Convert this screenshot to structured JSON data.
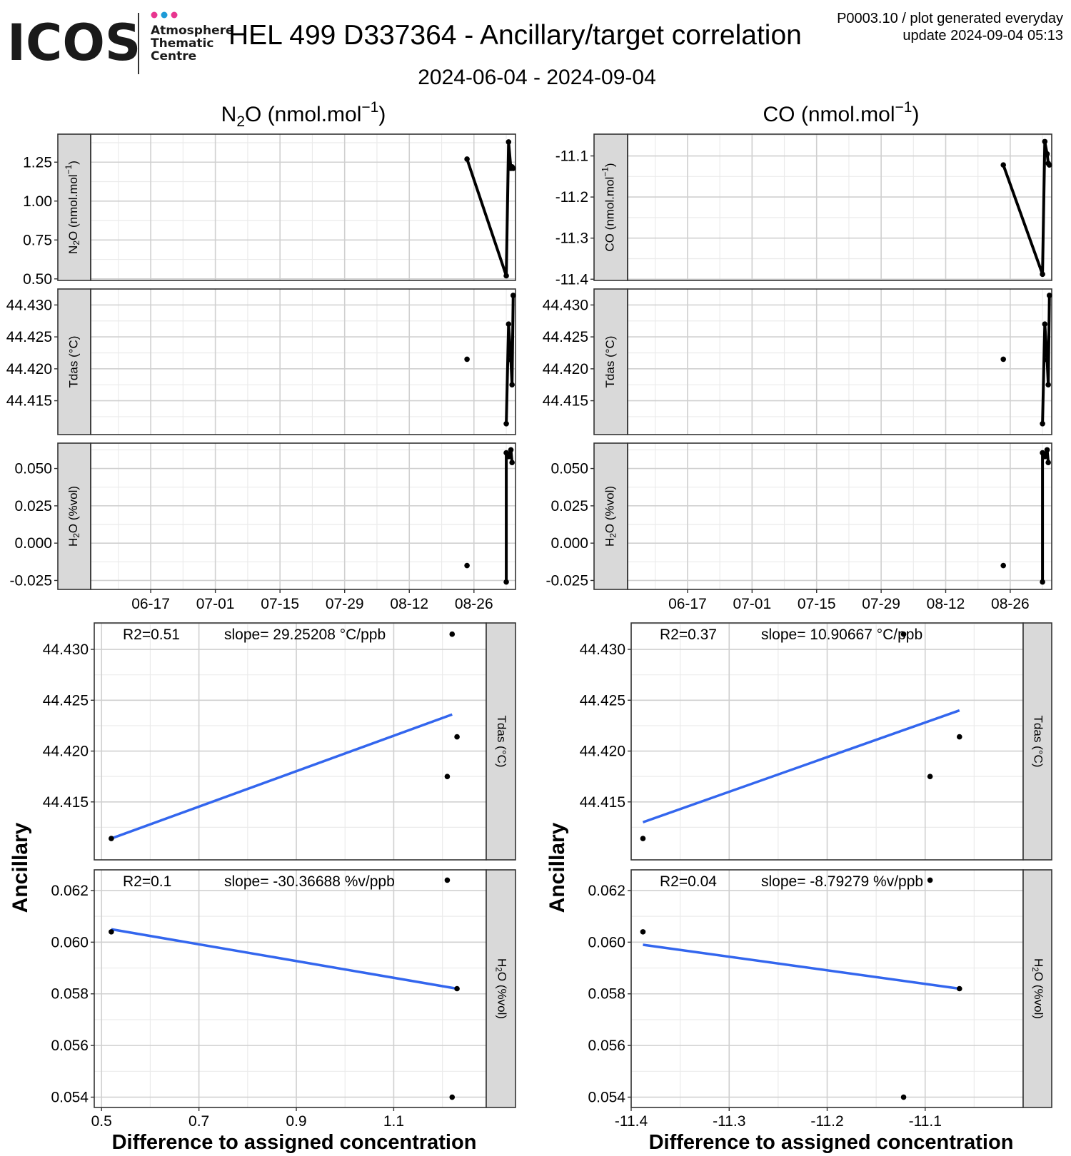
{
  "header": {
    "logo_text": "ICOS",
    "logo_line1": "Atmosphere",
    "logo_line2": "Thematic",
    "logo_line3": "Centre",
    "logo_dot_colors": [
      "#e8368f",
      "#1e9bd7",
      "#e8368f"
    ],
    "title": "HEL 499 D337364 - Ancillary/target correlation",
    "subtitle": "2024-06-04 - 2024-09-04",
    "meta_line1": "P0003.10 / plot generated everyday",
    "meta_line2": "update  2024-09-04 05:13"
  },
  "columns": [
    {
      "title_main": "N",
      "title_sub": "2",
      "title_rest": "O (nmol.mol",
      "title_sup": "−1",
      "title_end": ")"
    },
    {
      "title_main": "CO (nmol.mol",
      "title_sub": "",
      "title_rest": "",
      "title_sup": "−1",
      "title_end": ")"
    }
  ],
  "y_axis_title": "Ancillary",
  "x_axis_title": "Difference to assigned concentration",
  "colors": {
    "fit_line": "#3366ee",
    "strip_bg": "#d9d9d9",
    "point": "#000000"
  },
  "chart_data": [
    {
      "id": "n2o-time",
      "type": "line",
      "x_type": "date",
      "x_ticks": [
        "06-17",
        "07-01",
        "07-15",
        "07-29",
        "08-12",
        "08-26"
      ],
      "x_tick_dates": [
        "2024-06-17",
        "2024-07-01",
        "2024-07-15",
        "2024-07-29",
        "2024-08-12",
        "2024-08-26"
      ],
      "xlim": [
        "2024-06-04",
        "2024-09-04"
      ],
      "panels": [
        {
          "strip": "N2O (nmol.mol-1)",
          "ylim": [
            0.49,
            1.43
          ],
          "yticks": [
            "0.50",
            "0.75",
            "1.00",
            "1.25"
          ],
          "points": [
            [
              "2024-08-24T12:00",
              1.27
            ],
            [
              "2024-09-02T00:00",
              0.52
            ],
            [
              "2024-09-02T12:00",
              1.38
            ],
            [
              "2024-09-03T00:00",
              1.21
            ],
            [
              "2024-09-03T06:00",
              1.22
            ],
            [
              "2024-09-03T12:00",
              1.21
            ]
          ]
        },
        {
          "strip": "Tdas (°C)",
          "ylim": [
            44.4097,
            44.4325
          ],
          "yticks": [
            "44.415",
            "44.420",
            "44.425",
            "44.430"
          ],
          "points": [
            [
              "2024-08-24T12:00",
              44.4215
            ],
            [
              "2024-09-02T00:00",
              44.4114
            ],
            [
              "2024-09-02T12:00",
              44.427
            ],
            [
              "2024-09-03T00:00",
              44.4214
            ],
            [
              "2024-09-03T06:00",
              44.4175
            ],
            [
              "2024-09-03T12:00",
              44.4315
            ]
          ],
          "line_from": 1
        },
        {
          "strip": "H2O (%vol)",
          "ylim": [
            -0.031,
            0.067
          ],
          "yticks": [
            "-0.025",
            "0.000",
            "0.025",
            "0.050"
          ],
          "points": [
            [
              "2024-08-24T12:00",
              -0.015
            ],
            [
              "2024-09-02T00:00",
              -0.026
            ],
            [
              "2024-09-02T00:00",
              0.0605
            ],
            [
              "2024-09-02T12:00",
              0.058
            ],
            [
              "2024-09-03T00:00",
              0.0625
            ],
            [
              "2024-09-03T06:00",
              0.054
            ]
          ],
          "line_from": 1
        }
      ]
    },
    {
      "id": "co-time",
      "type": "line",
      "x_type": "date",
      "x_ticks": [
        "06-17",
        "07-01",
        "07-15",
        "07-29",
        "08-12",
        "08-26"
      ],
      "x_tick_dates": [
        "2024-06-17",
        "2024-07-01",
        "2024-07-15",
        "2024-07-29",
        "2024-08-12",
        "2024-08-26"
      ],
      "xlim": [
        "2024-06-04",
        "2024-09-04"
      ],
      "panels": [
        {
          "strip": "CO (nmol.mol-1)",
          "ylim": [
            -11.403,
            -11.047
          ],
          "yticks": [
            "-11.1",
            "-11.2",
            "-11.3",
            "-11.4"
          ],
          "points": [
            [
              "2024-08-24T12:00",
              -11.122
            ],
            [
              "2024-09-02T00:00",
              -11.388
            ],
            [
              "2024-09-02T12:00",
              -11.065
            ],
            [
              "2024-09-03T00:00",
              -11.095
            ],
            [
              "2024-09-03T06:00",
              -11.118
            ],
            [
              "2024-09-03T12:00",
              -11.122
            ]
          ]
        },
        {
          "strip": "Tdas (°C)",
          "ylim": [
            44.4097,
            44.4325
          ],
          "yticks": [
            "44.415",
            "44.420",
            "44.425",
            "44.430"
          ],
          "points": [
            [
              "2024-08-24T12:00",
              44.4215
            ],
            [
              "2024-09-02T00:00",
              44.4114
            ],
            [
              "2024-09-02T12:00",
              44.427
            ],
            [
              "2024-09-03T00:00",
              44.4214
            ],
            [
              "2024-09-03T06:00",
              44.4175
            ],
            [
              "2024-09-03T12:00",
              44.4315
            ]
          ],
          "line_from": 1
        },
        {
          "strip": "H2O (%vol)",
          "ylim": [
            -0.031,
            0.067
          ],
          "yticks": [
            "-0.025",
            "0.000",
            "0.025",
            "0.050"
          ],
          "points": [
            [
              "2024-08-24T12:00",
              -0.015
            ],
            [
              "2024-09-02T00:00",
              -0.026
            ],
            [
              "2024-09-02T00:00",
              0.0605
            ],
            [
              "2024-09-02T12:00",
              0.058
            ],
            [
              "2024-09-03T00:00",
              0.0625
            ],
            [
              "2024-09-03T06:00",
              0.054
            ]
          ],
          "line_from": 1
        }
      ]
    },
    {
      "id": "n2o-scatter",
      "type": "scatter",
      "xlim": [
        0.485,
        1.29
      ],
      "x_ticks": [
        "0.5",
        "0.7",
        "0.9",
        "1.1"
      ],
      "panels": [
        {
          "strip": "Tdas (°C)",
          "ylim": [
            44.4093,
            44.4326
          ],
          "yticks": [
            "44.415",
            "44.420",
            "44.425",
            "44.430"
          ],
          "r2": "R2=0.51",
          "slope": "slope= 29.25208 °C/ppb",
          "points": [
            [
              0.52,
              44.4114
            ],
            [
              1.21,
              44.4175
            ],
            [
              1.22,
              44.4315
            ],
            [
              1.23,
              44.4214
            ]
          ],
          "fit": [
            [
              0.52,
              44.4114
            ],
            [
              1.22,
              44.4236
            ]
          ]
        },
        {
          "strip": "H2O (%vol)",
          "ylim": [
            0.0536,
            0.0628
          ],
          "yticks": [
            "0.054",
            "0.056",
            "0.058",
            "0.060",
            "0.062"
          ],
          "r2": "R2=0.1",
          "slope": "slope= -30.36688 %v/ppb",
          "points": [
            [
              0.52,
              0.0604
            ],
            [
              1.21,
              0.0624
            ],
            [
              1.22,
              0.054
            ],
            [
              1.23,
              0.0582
            ]
          ],
          "fit": [
            [
              0.52,
              0.0605
            ],
            [
              1.23,
              0.0582
            ]
          ]
        }
      ]
    },
    {
      "id": "co-scatter",
      "type": "scatter",
      "xlim": [
        -11.4,
        -11.0
      ],
      "x_ticks": [
        "-11.4",
        "-11.3",
        "-11.2",
        "-11.1"
      ],
      "panels": [
        {
          "strip": "Tdas (°C)",
          "ylim": [
            44.4093,
            44.4326
          ],
          "yticks": [
            "44.415",
            "44.420",
            "44.425",
            "44.430"
          ],
          "r2": "R2=0.37",
          "slope": "slope= 10.90667 °C/ppb",
          "points": [
            [
              -11.388,
              44.4114
            ],
            [
              -11.095,
              44.4175
            ],
            [
              -11.122,
              44.4315
            ],
            [
              -11.065,
              44.4214
            ]
          ],
          "fit": [
            [
              -11.388,
              44.413
            ],
            [
              -11.065,
              44.424
            ]
          ]
        },
        {
          "strip": "H2O (%vol)",
          "ylim": [
            0.0536,
            0.0628
          ],
          "yticks": [
            "0.054",
            "0.056",
            "0.058",
            "0.060",
            "0.062"
          ],
          "r2": "R2=0.04",
          "slope": "slope= -8.79279 %v/ppb",
          "points": [
            [
              -11.388,
              0.0604
            ],
            [
              -11.095,
              0.0624
            ],
            [
              -11.122,
              0.054
            ],
            [
              -11.065,
              0.0582
            ]
          ],
          "fit": [
            [
              -11.388,
              0.0599
            ],
            [
              -11.065,
              0.0582
            ]
          ]
        }
      ]
    }
  ]
}
